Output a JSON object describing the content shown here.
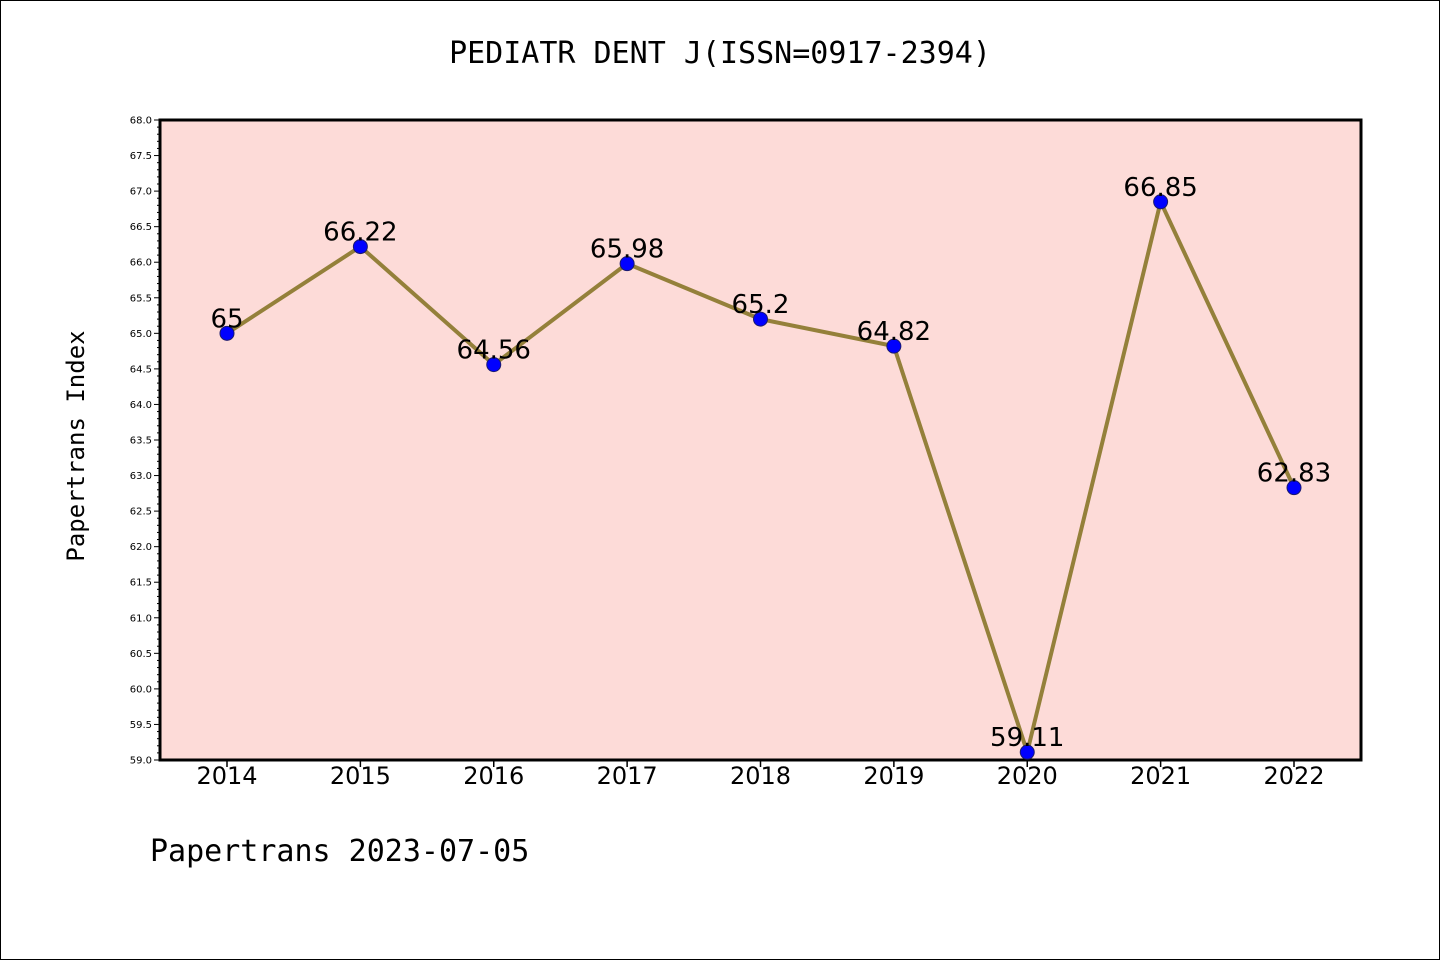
{
  "chart_data": {
    "type": "line",
    "title": "PEDIATR DENT J(ISSN=0917-2394)",
    "ylabel": "Papertrans Index",
    "xlabel": "",
    "x": [
      "2014",
      "2015",
      "2016",
      "2017",
      "2018",
      "2019",
      "2020",
      "2021",
      "2022"
    ],
    "series": [
      {
        "values": [
          65,
          66.22,
          64.56,
          65.98,
          65.2,
          64.82,
          59.11,
          66.85,
          62.83
        ],
        "labels": [
          "65",
          "66.22",
          "64.56",
          "65.98",
          "65.2",
          "64.82",
          "59.11",
          "66.85",
          "62.83"
        ]
      }
    ],
    "ylim": [
      59.0,
      68.0
    ],
    "yticks": [
      "59.0",
      "59.5",
      "60.0",
      "60.5",
      "61.0",
      "61.5",
      "62.0",
      "62.5",
      "63.0",
      "63.5",
      "64.0",
      "64.5",
      "65.0",
      "65.5",
      "66.0",
      "66.5",
      "67.0",
      "67.5",
      "68.0"
    ],
    "grid": false,
    "colors": {
      "plot_bg": "#fddbd8",
      "line": "#94803a",
      "marker": "#0000ff"
    }
  },
  "footer": {
    "text": "Papertrans 2023-07-05"
  }
}
